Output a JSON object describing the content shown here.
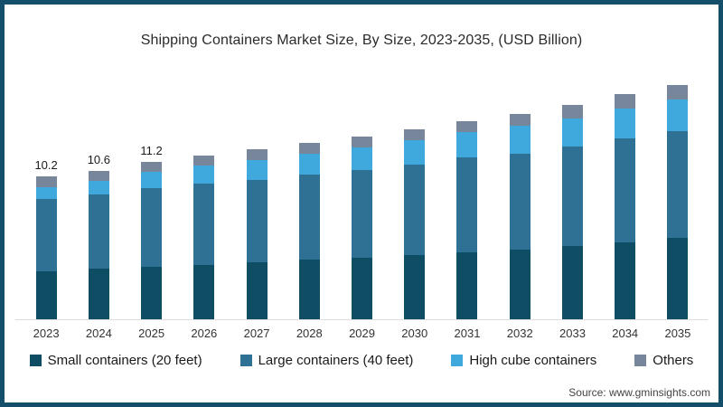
{
  "page": {
    "source": "Source: www.gminsights.com"
  },
  "chart_data": {
    "type": "bar",
    "stacked": true,
    "title": "Shipping Containers Market Size, By Size, 2023-2035, (USD Billion)",
    "unit": "USD Billion",
    "categories": [
      "2023",
      "2024",
      "2025",
      "2026",
      "2027",
      "2028",
      "2029",
      "2030",
      "2031",
      "2032",
      "2033",
      "2034",
      "2035"
    ],
    "series": [
      {
        "name": "Small containers (20 feet)",
        "color": "#0e4d63",
        "values": [
          3.45,
          3.6,
          3.75,
          3.9,
          4.05,
          4.25,
          4.4,
          4.55,
          4.75,
          5.0,
          5.2,
          5.5,
          5.8
        ]
      },
      {
        "name": "Large containers (40 feet)",
        "color": "#2e7195",
        "values": [
          5.1,
          5.3,
          5.6,
          5.8,
          5.9,
          6.1,
          6.25,
          6.5,
          6.8,
          6.8,
          7.1,
          7.4,
          7.6
        ]
      },
      {
        "name": "High cube containers",
        "color": "#3fa9de",
        "values": [
          0.9,
          1.0,
          1.15,
          1.25,
          1.4,
          1.45,
          1.6,
          1.7,
          1.8,
          2.0,
          2.0,
          2.15,
          2.25
        ]
      },
      {
        "name": "Others",
        "color": "#77869a",
        "values": [
          0.75,
          0.7,
          0.7,
          0.75,
          0.75,
          0.75,
          0.8,
          0.8,
          0.8,
          0.85,
          1.0,
          1.0,
          1.05
        ]
      }
    ],
    "total_labels": [
      "10.2",
      "10.6",
      "11.2",
      "",
      "",
      "",
      "",
      "",
      "",
      "",
      "",
      "",
      ""
    ],
    "ylim": [
      0,
      18
    ],
    "grid": false,
    "legend_position": "bottom",
    "axis_line_color": "#dcdcdc",
    "frame_color": "#134f6b"
  }
}
